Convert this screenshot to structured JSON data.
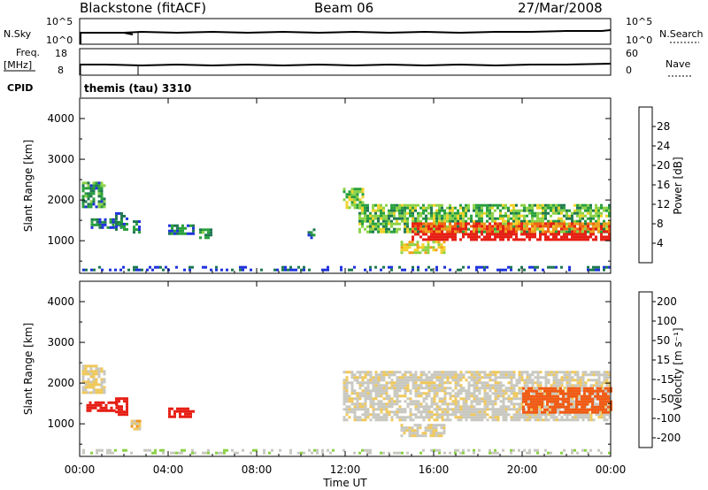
{
  "header": {
    "station": "Blackstone (fitACF)",
    "beam": "Beam 06",
    "date": "27/Mar/2008"
  },
  "top_panels": {
    "nsky_label": "N.Sky",
    "nsearch_label": "N.Search",
    "nsky_ticks": [
      "10^5",
      "10^0"
    ],
    "nsearch_ticks": [
      "10^5",
      "10^0"
    ],
    "freq_label_1": "Freq.",
    "freq_label_2": "[MHz]",
    "freq_ticks": [
      "18",
      "8"
    ],
    "nave_label": "Nave",
    "nave_ticks": [
      "60",
      "0"
    ],
    "cpid_label": "CPID",
    "cpid_text": "themis (tau) 3310"
  },
  "x_axis": {
    "label": "Time UT",
    "ticks": [
      "00:00",
      "04:00",
      "08:00",
      "12:00",
      "16:00",
      "20:00",
      "00:00"
    ]
  },
  "colors": {
    "power_scale": [
      "#1e32dc",
      "#1e7850",
      "#28a03c",
      "#8cd246",
      "#f0d228",
      "#f0a01e",
      "#f06414",
      "#e61e14"
    ],
    "velocity_scale": [
      "#e61e14",
      "#f05a14",
      "#f0961e",
      "#f0c85a",
      "#c8c8c0",
      "#8cd246",
      "#3ca050",
      "#2850b4"
    ]
  },
  "chart_data": [
    {
      "type": "heatmap",
      "name": "power",
      "ylabel": "Slant Range [km]",
      "yticks": [
        "4000",
        "3000",
        "2000",
        "1000"
      ],
      "ylim": [
        200,
        4500
      ],
      "xlim": [
        0,
        24
      ],
      "colorbar_label": "Power [dB]",
      "colorbar_ticks": [
        "28",
        "24",
        "20",
        "16",
        "12",
        "8",
        "4"
      ],
      "colorbar_range": [
        0,
        32
      ],
      "regions": [
        {
          "t": [
            0.1,
            1.1
          ],
          "r": [
            1800,
            2450
          ],
          "level": 1.5
        },
        {
          "t": [
            0.5,
            1.9
          ],
          "r": [
            1350,
            1550
          ],
          "level": 1
        },
        {
          "t": [
            1.6,
            2.1
          ],
          "r": [
            1250,
            1700
          ],
          "level": 1
        },
        {
          "t": [
            2.4,
            2.7
          ],
          "r": [
            1200,
            1500
          ],
          "level": 1
        },
        {
          "t": [
            4.0,
            5.2
          ],
          "r": [
            1200,
            1400
          ],
          "level": 1
        },
        {
          "t": [
            5.4,
            6.0
          ],
          "r": [
            1100,
            1300
          ],
          "level": 2
        },
        {
          "t": [
            10.3,
            10.6
          ],
          "r": [
            1100,
            1300
          ],
          "level": 0.5
        },
        {
          "t": [
            11.9,
            12.8
          ],
          "r": [
            1800,
            2300
          ],
          "level": 3
        },
        {
          "t": [
            12.6,
            24.0
          ],
          "r": [
            1200,
            1900
          ],
          "level": 2.5
        },
        {
          "t": [
            15.0,
            24.0
          ],
          "r": [
            1050,
            1450
          ],
          "level": 6
        },
        {
          "t": [
            14.5,
            16.5
          ],
          "r": [
            700,
            1000
          ],
          "level": 4
        },
        {
          "t": [
            0.0,
            24.0
          ],
          "r": [
            250,
            380
          ],
          "level": 0
        }
      ]
    },
    {
      "type": "heatmap",
      "name": "velocity",
      "ylabel": "Slant Range [km]",
      "yticks": [
        "4000",
        "3000",
        "2000",
        "1000"
      ],
      "ylim": [
        200,
        4500
      ],
      "xlim": [
        0,
        24
      ],
      "colorbar_label": "Velocity [m s⁻¹]",
      "colorbar_ticks": [
        "200",
        "100",
        "50",
        "15",
        "-15",
        "-50",
        "-100",
        "-200"
      ],
      "colorbar_range": [
        -250,
        250
      ],
      "regions": [
        {
          "t": [
            0.1,
            1.1
          ],
          "r": [
            1750,
            2450
          ],
          "v": -5
        },
        {
          "t": [
            0.3,
            1.7
          ],
          "r": [
            1300,
            1550
          ],
          "v": -180
        },
        {
          "t": [
            1.6,
            2.2
          ],
          "r": [
            1250,
            1650
          ],
          "v": -160
        },
        {
          "t": [
            4.0,
            5.2
          ],
          "r": [
            1150,
            1400
          ],
          "v": -140
        },
        {
          "t": [
            2.3,
            2.7
          ],
          "r": [
            850,
            1100
          ],
          "v": -8
        },
        {
          "t": [
            11.9,
            24.0
          ],
          "r": [
            1100,
            2300
          ],
          "v": 0
        },
        {
          "t": [
            14.5,
            16.5
          ],
          "r": [
            700,
            1000
          ],
          "v": 0
        },
        {
          "t": [
            20.0,
            24.0
          ],
          "r": [
            1300,
            1900
          ],
          "v": -60
        },
        {
          "t": [
            0.0,
            24.0
          ],
          "r": [
            250,
            380
          ],
          "v": 10
        }
      ]
    }
  ]
}
